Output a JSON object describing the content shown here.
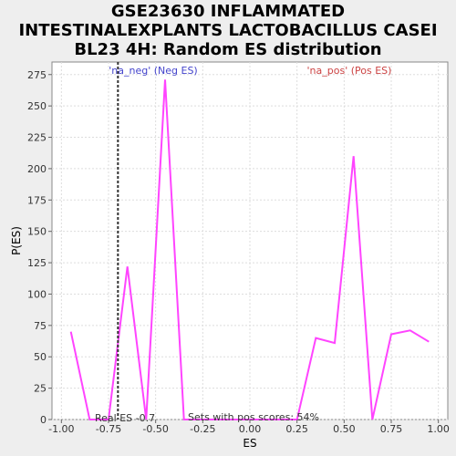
{
  "title_lines": [
    "GSE23630 INFLAMMATED",
    "INTESTINALEXPLANTS LACTOBACILLUS CASEI",
    "BL23 4H: Random ES distribution"
  ],
  "chart_data": {
    "type": "line",
    "xlabel": "ES",
    "ylabel": "P(ES)",
    "xlim": [
      -1.05,
      1.05
    ],
    "ylim": [
      0,
      285
    ],
    "x_ticks": [
      "-1.00",
      "-0.75",
      "-0.50",
      "-0.25",
      "0.00",
      "0.25",
      "0.50",
      "0.75",
      "1.00"
    ],
    "y_ticks": [
      "0",
      "25",
      "50",
      "75",
      "100",
      "125",
      "150",
      "175",
      "200",
      "225",
      "250",
      "275"
    ],
    "grid": true,
    "series": [
      {
        "color": "#ff44ff",
        "x": [
          -0.95,
          -0.85,
          -0.75,
          -0.65,
          -0.55,
          -0.45,
          -0.35,
          -0.25,
          -0.15,
          -0.05,
          0.05,
          0.15,
          0.25,
          0.35,
          0.45,
          0.55,
          0.65,
          0.75,
          0.85,
          0.95
        ],
        "y": [
          70,
          0,
          0,
          122,
          0,
          271,
          0,
          0,
          0,
          0,
          0,
          0,
          0,
          65,
          61,
          210,
          0,
          68,
          71,
          62
        ]
      }
    ],
    "real_es": -0.7,
    "annotations": {
      "neg_label": "'na_neg' (Neg ES)",
      "pos_label": "'na_pos' (Pos ES)",
      "real_es_label": "Real ES -0.7",
      "pos_scores_label": "Sets with pos scores: 54%"
    },
    "colors": {
      "neg_label": "#4444cc",
      "pos_label": "#cc4444",
      "line": "#ff44ff",
      "plot_bg": "#ffffff",
      "grid": "#dddddd"
    }
  }
}
